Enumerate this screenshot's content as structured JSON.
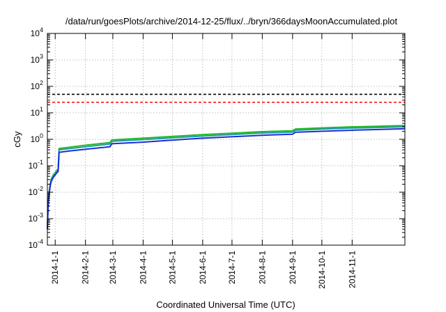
{
  "chart_data": {
    "type": "line",
    "title": "/data/run/goesPlots/archive/2014-12-25/flux/../bryn/366daysMoonAccumulated.plot",
    "xlabel": "Coordinated Universal Time (UTC)",
    "ylabel": "cGy",
    "y_scale": "log",
    "ylim": [
      0.0001,
      10000
    ],
    "xlim": [
      "2013-12-24",
      "2014-12-25"
    ],
    "grid": true,
    "legend": "none",
    "y_ticks": [
      {
        "value": 0.0001,
        "base": "10",
        "exp": "-4"
      },
      {
        "value": 0.001,
        "base": "10",
        "exp": "-3"
      },
      {
        "value": 0.01,
        "base": "10",
        "exp": "-2"
      },
      {
        "value": 0.1,
        "base": "10",
        "exp": "-1"
      },
      {
        "value": 1,
        "base": "10",
        "exp": "0"
      },
      {
        "value": 10,
        "base": "10",
        "exp": "1"
      },
      {
        "value": 100,
        "base": "10",
        "exp": "2"
      },
      {
        "value": 1000,
        "base": "10",
        "exp": "3"
      },
      {
        "value": 10000,
        "base": "10",
        "exp": "4"
      }
    ],
    "x_ticks": [
      {
        "value": "2014-01-01",
        "label": "2014-1-1"
      },
      {
        "value": "2014-02-01",
        "label": "2014-2-1"
      },
      {
        "value": "2014-03-01",
        "label": "2014-3-1"
      },
      {
        "value": "2014-04-01",
        "label": "2014-4-1"
      },
      {
        "value": "2014-05-01",
        "label": "2014-5-1"
      },
      {
        "value": "2014-06-01",
        "label": "2014-6-1"
      },
      {
        "value": "2014-07-01",
        "label": "2014-7-1"
      },
      {
        "value": "2014-08-01",
        "label": "2014-8-1"
      },
      {
        "value": "2014-09-01",
        "label": "2014-9-1"
      },
      {
        "value": "2014-10-01",
        "label": "2014-10-1"
      },
      {
        "value": "2014-11-01",
        "label": "2014-11-1"
      }
    ],
    "reference_lines": [
      {
        "y": 50,
        "color": "#000000",
        "style": "dashed"
      },
      {
        "y": 25,
        "color": "#ff0000",
        "style": "dashed"
      }
    ],
    "series": [
      {
        "color": "#22b822",
        "points": [
          {
            "x": "2013-12-24",
            "y": 0.0004
          },
          {
            "x": "2013-12-24T12:00",
            "y": 0.002
          },
          {
            "x": "2013-12-25",
            "y": 0.005
          },
          {
            "x": "2013-12-26",
            "y": 0.012
          },
          {
            "x": "2013-12-27",
            "y": 0.022
          },
          {
            "x": "2013-12-28",
            "y": 0.032
          },
          {
            "x": "2013-12-30",
            "y": 0.045
          },
          {
            "x": "2014-01-01",
            "y": 0.055
          },
          {
            "x": "2014-01-03",
            "y": 0.07
          },
          {
            "x": "2014-01-04",
            "y": 0.075
          },
          {
            "x": "2014-01-05",
            "y": 0.45
          },
          {
            "x": "2014-01-15",
            "y": 0.5
          },
          {
            "x": "2014-02-01",
            "y": 0.6
          },
          {
            "x": "2014-02-26",
            "y": 0.75
          },
          {
            "x": "2014-02-28",
            "y": 0.95
          },
          {
            "x": "2014-04-01",
            "y": 1.1
          },
          {
            "x": "2014-04-25",
            "y": 1.25
          },
          {
            "x": "2014-06-01",
            "y": 1.5
          },
          {
            "x": "2014-07-01",
            "y": 1.7
          },
          {
            "x": "2014-08-01",
            "y": 1.95
          },
          {
            "x": "2014-09-01",
            "y": 2.1
          },
          {
            "x": "2014-09-04",
            "y": 2.45
          },
          {
            "x": "2014-10-01",
            "y": 2.7
          },
          {
            "x": "2014-11-01",
            "y": 2.95
          },
          {
            "x": "2014-12-25",
            "y": 3.3
          }
        ]
      },
      {
        "color": "#1fa0a0",
        "points": [
          {
            "x": "2013-12-24",
            "y": 0.0004
          },
          {
            "x": "2013-12-24T12:00",
            "y": 0.0018
          },
          {
            "x": "2013-12-25",
            "y": 0.0045
          },
          {
            "x": "2013-12-26",
            "y": 0.011
          },
          {
            "x": "2013-12-27",
            "y": 0.02
          },
          {
            "x": "2013-12-28",
            "y": 0.029
          },
          {
            "x": "2013-12-30",
            "y": 0.04
          },
          {
            "x": "2014-01-01",
            "y": 0.05
          },
          {
            "x": "2014-01-03",
            "y": 0.063
          },
          {
            "x": "2014-01-04",
            "y": 0.068
          },
          {
            "x": "2014-01-05",
            "y": 0.4
          },
          {
            "x": "2014-01-15",
            "y": 0.44
          },
          {
            "x": "2014-02-01",
            "y": 0.52
          },
          {
            "x": "2014-02-26",
            "y": 0.66
          },
          {
            "x": "2014-02-28",
            "y": 0.84
          },
          {
            "x": "2014-04-01",
            "y": 0.97
          },
          {
            "x": "2014-04-25",
            "y": 1.1
          },
          {
            "x": "2014-06-01",
            "y": 1.32
          },
          {
            "x": "2014-07-01",
            "y": 1.5
          },
          {
            "x": "2014-08-01",
            "y": 1.72
          },
          {
            "x": "2014-09-01",
            "y": 1.86
          },
          {
            "x": "2014-09-04",
            "y": 2.2
          },
          {
            "x": "2014-10-01",
            "y": 2.42
          },
          {
            "x": "2014-11-01",
            "y": 2.65
          },
          {
            "x": "2014-12-25",
            "y": 2.95
          }
        ]
      },
      {
        "color": "#1a2ed8",
        "points": [
          {
            "x": "2013-12-24",
            "y": 0.0004
          },
          {
            "x": "2013-12-24T12:00",
            "y": 0.0016
          },
          {
            "x": "2013-12-25",
            "y": 0.004
          },
          {
            "x": "2013-12-26",
            "y": 0.01
          },
          {
            "x": "2013-12-27",
            "y": 0.018
          },
          {
            "x": "2013-12-28",
            "y": 0.026
          },
          {
            "x": "2013-12-30",
            "y": 0.036
          },
          {
            "x": "2014-01-01",
            "y": 0.045
          },
          {
            "x": "2014-01-03",
            "y": 0.056
          },
          {
            "x": "2014-01-04",
            "y": 0.06
          },
          {
            "x": "2014-01-05",
            "y": 0.32
          },
          {
            "x": "2014-01-15",
            "y": 0.36
          },
          {
            "x": "2014-02-01",
            "y": 0.42
          },
          {
            "x": "2014-02-26",
            "y": 0.52
          },
          {
            "x": "2014-02-28",
            "y": 0.68
          },
          {
            "x": "2014-04-01",
            "y": 0.78
          },
          {
            "x": "2014-04-25",
            "y": 0.9
          },
          {
            "x": "2014-06-01",
            "y": 1.1
          },
          {
            "x": "2014-07-01",
            "y": 1.25
          },
          {
            "x": "2014-08-01",
            "y": 1.42
          },
          {
            "x": "2014-09-01",
            "y": 1.55
          },
          {
            "x": "2014-09-04",
            "y": 1.85
          },
          {
            "x": "2014-10-01",
            "y": 2.0
          },
          {
            "x": "2014-11-01",
            "y": 2.2
          },
          {
            "x": "2014-12-25",
            "y": 2.5
          }
        ]
      }
    ]
  }
}
